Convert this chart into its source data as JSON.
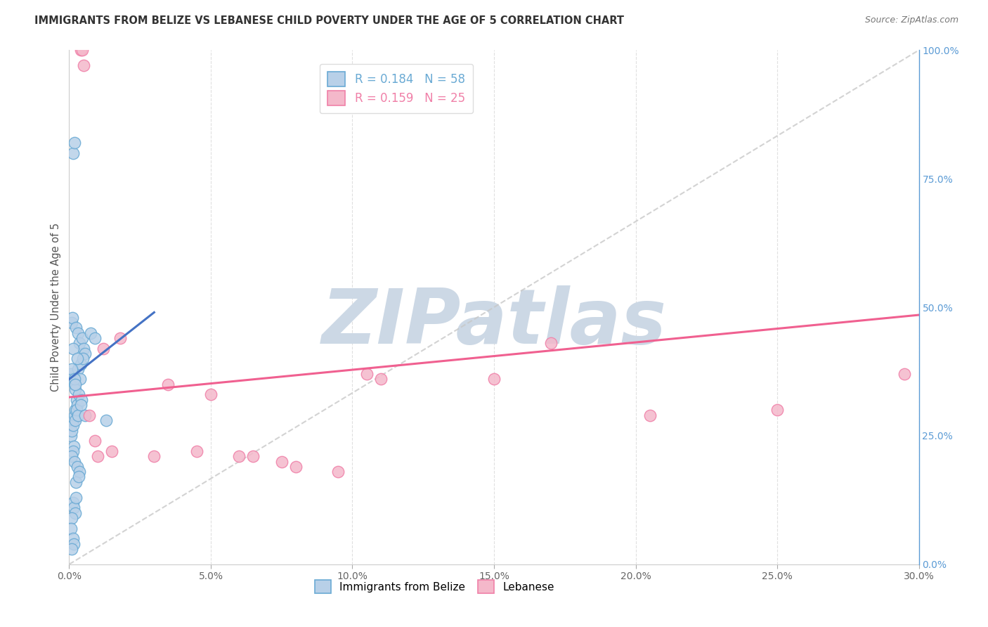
{
  "title": "IMMIGRANTS FROM BELIZE VS LEBANESE CHILD POVERTY UNDER THE AGE OF 5 CORRELATION CHART",
  "source": "Source: ZipAtlas.com",
  "ylabel": "Child Poverty Under the Age of 5",
  "xlabel_ticks": [
    "0.0%",
    "5.0%",
    "10.0%",
    "15.0%",
    "20.0%",
    "25.0%",
    "30.0%"
  ],
  "xlabel_values": [
    0.0,
    5.0,
    10.0,
    15.0,
    20.0,
    25.0,
    30.0
  ],
  "ylabel_ticks": [
    "0.0%",
    "25.0%",
    "50.0%",
    "75.0%",
    "100.0%"
  ],
  "ylabel_values": [
    0.0,
    25.0,
    50.0,
    75.0,
    100.0
  ],
  "xmin": 0.0,
  "xmax": 30.0,
  "ymin": 0.0,
  "ymax": 100.0,
  "legend_label_blue": "R = 0.184   N = 58",
  "legend_label_pink": "R = 0.159   N = 25",
  "bottom_legend": [
    "Immigrants from Belize",
    "Lebanese"
  ],
  "blue_fill": "#b8d0e8",
  "pink_fill": "#f4b8ca",
  "blue_edge": "#6aaad4",
  "pink_edge": "#f080a8",
  "blue_line": "#4472c4",
  "pink_line": "#f06090",
  "ref_line": "#c8c8c8",
  "watermark_text": "ZIPatlas",
  "watermark_color": "#ccd8e5",
  "background_color": "#ffffff",
  "grid_color": "#e0e0e0",
  "blue_x": [
    0.15,
    0.2,
    0.08,
    0.12,
    0.25,
    0.3,
    0.35,
    0.45,
    0.5,
    0.55,
    0.07,
    0.1,
    0.18,
    0.22,
    0.32,
    0.4,
    0.48,
    0.13,
    0.18,
    0.22,
    0.27,
    0.29,
    0.34,
    0.38,
    0.07,
    0.1,
    0.14,
    0.21,
    0.26,
    0.3,
    0.44,
    0.17,
    0.13,
    0.1,
    0.2,
    0.28,
    0.36,
    0.4,
    0.25,
    0.33,
    0.14,
    0.17,
    0.21,
    0.1,
    0.55,
    0.07,
    0.14,
    0.17,
    0.75,
    0.9,
    1.3,
    0.1,
    0.18,
    0.21,
    0.14,
    0.09,
    0.24,
    0.28
  ],
  "blue_y": [
    80.0,
    82.0,
    47.0,
    48.0,
    46.0,
    45.0,
    43.0,
    44.0,
    42.0,
    41.0,
    37.0,
    36.0,
    35.0,
    34.0,
    38.0,
    39.0,
    40.0,
    28.0,
    29.0,
    30.0,
    32.0,
    31.0,
    33.0,
    36.0,
    25.0,
    26.0,
    27.0,
    28.0,
    30.0,
    29.0,
    32.0,
    23.0,
    22.0,
    21.0,
    20.0,
    19.0,
    18.0,
    31.0,
    16.0,
    17.0,
    12.0,
    11.0,
    10.0,
    9.0,
    29.0,
    7.0,
    5.0,
    4.0,
    45.0,
    44.0,
    28.0,
    38.0,
    36.0,
    35.0,
    42.0,
    3.0,
    13.0,
    40.0
  ],
  "pink_x": [
    0.4,
    0.45,
    0.5,
    1.2,
    1.8,
    3.5,
    5.0,
    6.5,
    8.0,
    10.5,
    15.0,
    20.5,
    25.0,
    29.5,
    0.7,
    0.9,
    1.5,
    3.0,
    4.5,
    6.0,
    7.5,
    9.5,
    11.0,
    1.0,
    17.0
  ],
  "pink_y": [
    100.0,
    100.0,
    97.0,
    42.0,
    44.0,
    35.0,
    33.0,
    21.0,
    19.0,
    37.0,
    36.0,
    29.0,
    30.0,
    37.0,
    29.0,
    24.0,
    22.0,
    21.0,
    22.0,
    21.0,
    20.0,
    18.0,
    36.0,
    21.0,
    43.0
  ],
  "blue_trend_x0": 0.0,
  "blue_trend_y0": 36.0,
  "blue_trend_x1": 3.0,
  "blue_trend_y1": 49.0,
  "pink_trend_x0": 0.0,
  "pink_trend_y0": 32.5,
  "pink_trend_x1": 30.0,
  "pink_trend_y1": 48.5
}
